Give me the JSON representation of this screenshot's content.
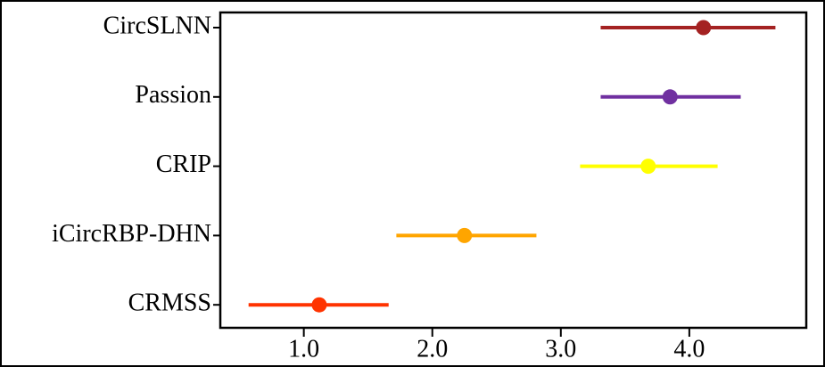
{
  "chart_data": {
    "type": "dot-errorbar",
    "categories": [
      "CircSLNN",
      "Passion",
      "CRIP",
      "iCircRBP-DHN",
      "CRMSS"
    ],
    "values": [
      4.11,
      3.85,
      3.68,
      2.25,
      1.12
    ],
    "lower": [
      3.31,
      3.31,
      3.15,
      1.72,
      0.57
    ],
    "upper": [
      4.67,
      4.4,
      4.22,
      2.81,
      1.66
    ],
    "colors": [
      "#a42222",
      "#7030a0",
      "#ffff00",
      "#ffa500",
      "#ff3300"
    ],
    "xlim": [
      0.35,
      4.91
    ],
    "xticks": [
      {
        "value": 1,
        "label": "1.0"
      },
      {
        "value": 2,
        "label": "2.0"
      },
      {
        "value": 3,
        "label": "3.0"
      },
      {
        "value": 4,
        "label": "4.0"
      }
    ]
  }
}
